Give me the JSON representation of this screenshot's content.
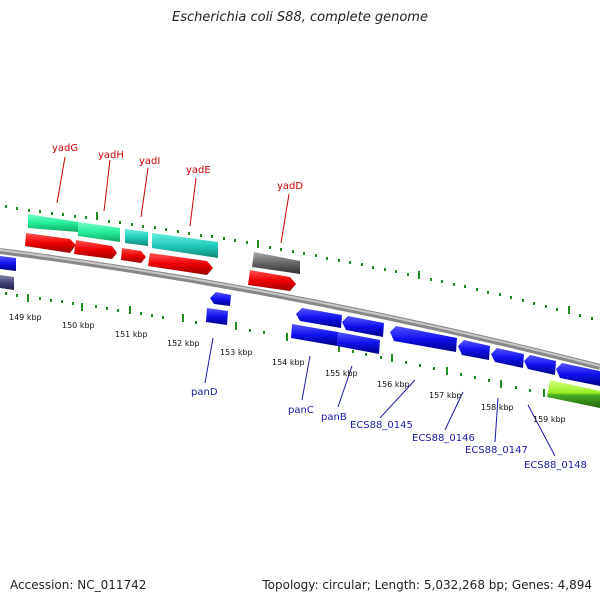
{
  "header": {
    "title": "Escherichia coli S88, complete genome"
  },
  "footer": {
    "accession": "Accession: NC_011742",
    "info": "Topology: circular; Length: 5,032,268 bp; Genes: 4,894"
  },
  "kbp_labels": [
    "149 kbp",
    "150 kbp",
    "151 kbp",
    "152 kbp",
    "153 kbp",
    "154 kbp",
    "155 kbp",
    "156 kbp",
    "157 kbp",
    "158 kbp",
    "159 kbp"
  ],
  "upper_labels": [
    "yadG",
    "yadH",
    "yadI",
    "yadE",
    "yadD"
  ],
  "lower_labels": [
    "panD",
    "panC",
    "panB",
    "ECS88_0145",
    "ECS88_0146",
    "ECS88_0147",
    "ECS88_0148"
  ],
  "colors": {
    "cds_red": "#ee0000",
    "cds_blue": "#1010ee",
    "teal": "#22ccbb",
    "mint": "#22ee99",
    "gray": "#666666",
    "lime": "#99ee22",
    "tick_green": "#228b22",
    "label_red": "#cc0000",
    "label_blue": "#1a1aaa"
  }
}
